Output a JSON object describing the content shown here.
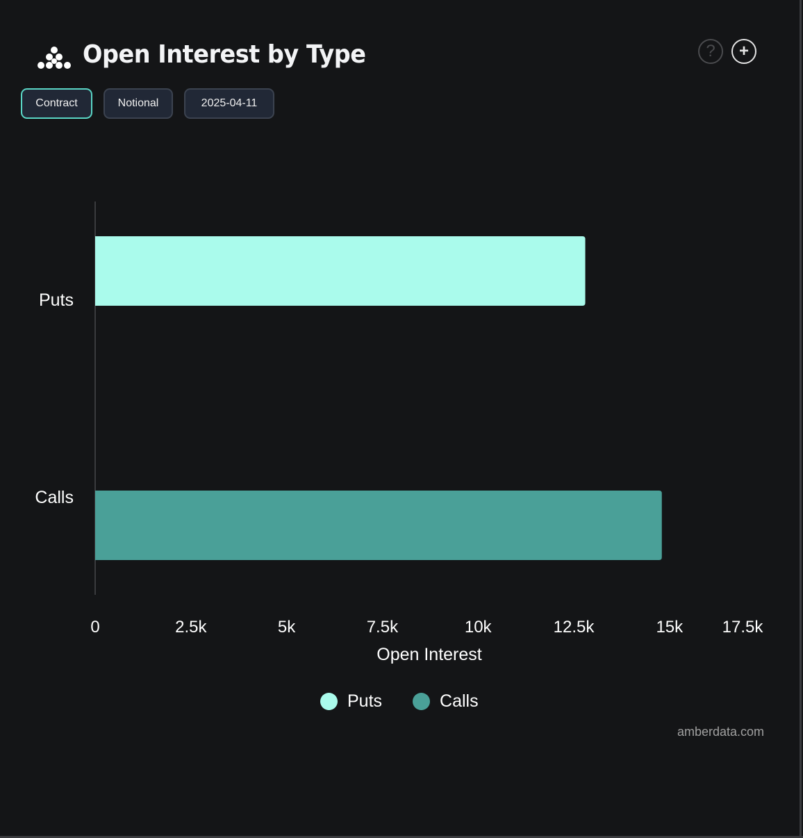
{
  "header": {
    "title": "Open Interest by Type",
    "logo": "amberdata-logo",
    "help_icon": "question-circle-icon",
    "add_icon": "plus-circle-icon"
  },
  "controls": {
    "contract_label": "Contract",
    "notional_label": "Notional",
    "date_label": "2025-04-11",
    "active": "Contract"
  },
  "chart_data": {
    "type": "bar",
    "orientation": "horizontal",
    "categories": [
      "Puts",
      "Calls"
    ],
    "values": [
      12800,
      14800
    ],
    "colors": [
      "#aafbec",
      "#4aa098"
    ],
    "xlabel": "Open Interest",
    "ylabel": "",
    "xlim": [
      0,
      17500
    ],
    "xticks": [
      "0",
      "2.5k",
      "5k",
      "7.5k",
      "10k",
      "12.5k",
      "15k",
      "17.5k"
    ],
    "grid": false,
    "legend": "bottom",
    "legend_entries": [
      "Puts",
      "Calls"
    ]
  },
  "footer": {
    "credit": "amberdata.com"
  }
}
